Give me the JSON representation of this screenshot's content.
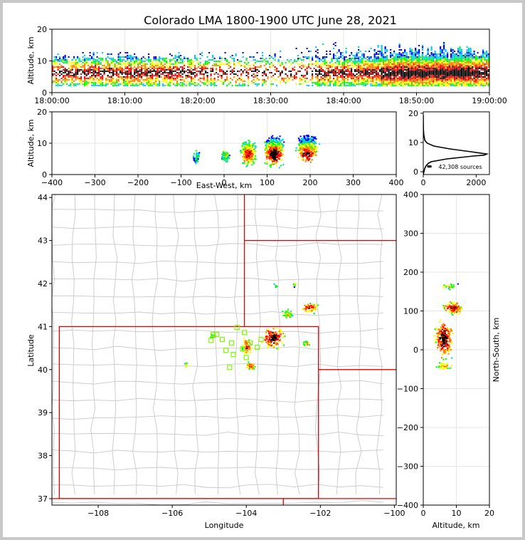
{
  "title": "Colorado LMA 1800-1900 UTC June 28, 2021",
  "time_panel": {
    "ylabel": "Altitude, km",
    "xticks": [
      "18:00:00",
      "18:10:00",
      "18:20:00",
      "18:30:00",
      "18:40:00",
      "18:50:00",
      "19:00:00"
    ],
    "yticks": [
      "0",
      "10",
      "20"
    ]
  },
  "ew_panel": {
    "xlabel": "East-West, km",
    "ylabel": "Altitude, km",
    "xticks": [
      "−400",
      "−300",
      "−200",
      "−100",
      "0",
      "100",
      "200",
      "300",
      "400"
    ],
    "yticks": [
      "0",
      "10",
      "20"
    ]
  },
  "hist_panel": {
    "xticks": [
      "0",
      "2000"
    ],
    "yticks": [
      "0",
      "10",
      "20"
    ],
    "sources_label": "42,308 sources"
  },
  "map_panel": {
    "xlabel": "Longitude",
    "ylabel": "Latitude",
    "xticks": [
      "−108",
      "−106",
      "−104",
      "−102",
      "−100"
    ],
    "yticks": [
      "37",
      "38",
      "39",
      "40",
      "41",
      "42",
      "43",
      "44"
    ]
  },
  "ns_panel": {
    "xlabel": "Altitude, km",
    "ylabel": "North-South, km",
    "xticks": [
      "0",
      "10",
      "20"
    ],
    "yticks": [
      "−400",
      "−300",
      "−200",
      "−100",
      "0",
      "100",
      "200",
      "300",
      "400"
    ]
  },
  "colors": {
    "border_red": "#e00000",
    "county_gray": "#c8c8c8",
    "station_green": "#7cfc00",
    "density_ramp": [
      "#0000ff",
      "#00c8ff",
      "#00ff00",
      "#ffff00",
      "#ff8000",
      "#ff0000",
      "#000000"
    ]
  },
  "chart_data": [
    {
      "type": "heatmap",
      "title": "Colorado LMA 1800-1900 UTC June 28, 2021",
      "ylabel": "Altitude, km",
      "xlim": [
        "18:00:00",
        "19:00:00"
      ],
      "ylim": [
        0,
        20
      ],
      "grid": true,
      "description": "Source density vs time and altitude; sources mainly between 2 and 12 km, densest 4-9 km"
    },
    {
      "type": "heatmap",
      "xlabel": "East-West, km",
      "ylabel": "Altitude, km",
      "xlim": [
        -400,
        400
      ],
      "ylim": [
        0,
        20
      ],
      "grid": true,
      "clusters_x_km": [
        [
          -75,
          -55
        ],
        [
          -10,
          15
        ],
        [
          30,
          75
        ],
        [
          90,
          140
        ],
        [
          160,
          225
        ]
      ]
    },
    {
      "type": "line",
      "xlim": [
        0,
        2500
      ],
      "ylim": [
        -1,
        21
      ],
      "x": [
        0,
        50,
        100,
        200,
        300,
        600,
        900,
        1400,
        1900,
        2300,
        2400,
        1800,
        1000,
        400,
        150,
        60,
        20,
        5
      ],
      "y": [
        -1,
        1,
        2,
        3,
        3.5,
        4,
        4.5,
        5,
        5.5,
        5.8,
        6.2,
        7,
        8,
        9,
        10,
        11,
        13,
        15
      ],
      "annotation": "42,308 sources"
    },
    {
      "type": "scatter",
      "xlabel": "Longitude",
      "ylabel": "Latitude",
      "xlim": [
        -109.25,
        -99.95
      ],
      "ylim": [
        36.85,
        44.07
      ],
      "stations": [
        [
          -104.95,
          40.68
        ],
        [
          -104.8,
          40.82
        ],
        [
          -104.65,
          40.7
        ],
        [
          -104.55,
          40.45
        ],
        [
          -104.4,
          40.62
        ],
        [
          -104.25,
          40.98
        ],
        [
          -104.05,
          40.86
        ],
        [
          -103.9,
          40.62
        ],
        [
          -104.1,
          40.48
        ],
        [
          -104.45,
          40.05
        ],
        [
          -104.0,
          40.28
        ],
        [
          -103.7,
          40.52
        ],
        [
          -103.6,
          40.7
        ],
        [
          -104.9,
          40.82
        ],
        [
          -104.35,
          40.35
        ]
      ]
    },
    {
      "type": "heatmap",
      "xlabel": "Altitude, km",
      "ylabel": "North-South, km",
      "xlim": [
        0,
        20
      ],
      "ylim": [
        -400,
        400
      ],
      "grid": true
    }
  ]
}
